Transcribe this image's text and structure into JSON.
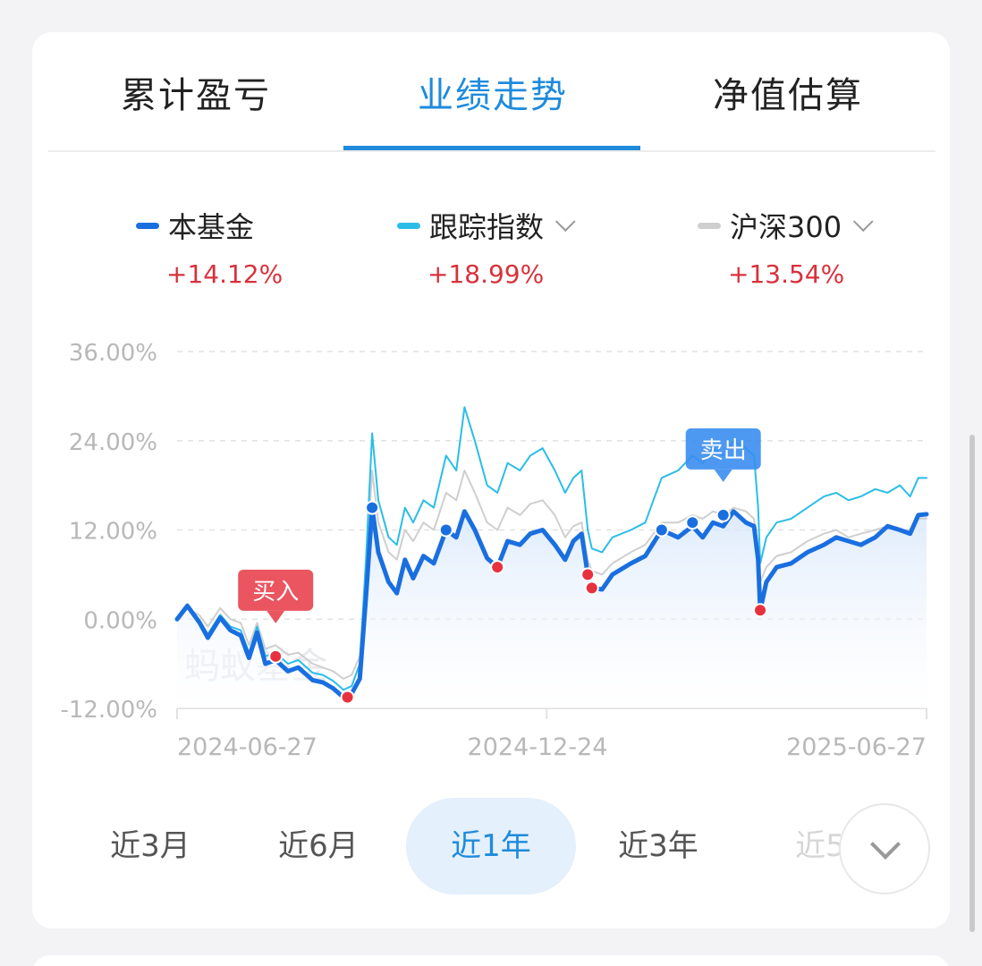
{
  "tabs": [
    {
      "label": "累计盈亏",
      "active": false
    },
    {
      "label": "业绩走势",
      "active": true
    },
    {
      "label": "净值估算",
      "active": false
    }
  ],
  "legend": [
    {
      "label": "本基金",
      "value": "+14.12%",
      "color": "#1a6fe0",
      "dropdown": false
    },
    {
      "label": "跟踪指数",
      "value": "+18.99%",
      "color": "#2bbde8",
      "dropdown": true
    },
    {
      "label": "沪深300",
      "value": "+13.54%",
      "color": "#cfcfcf",
      "dropdown": true
    }
  ],
  "chart_data": {
    "type": "line",
    "ylim": [
      -12,
      36
    ],
    "y_ticks": [
      "36.00%",
      "24.00%",
      "12.00%",
      "0.00%",
      "-12.00%"
    ],
    "y_tick_values": [
      36,
      24,
      12,
      0,
      -12
    ],
    "x_tick_labels": [
      "2024-06-27",
      "2024-12-24",
      "2025-06-27"
    ],
    "x_domain": [
      "2024-06-27",
      "2025-06-27"
    ],
    "watermark": "蚂蚁基金",
    "series": [
      {
        "name": "本基金",
        "color": "#1a6fe0",
        "points": [
          [
            "2024-06-27",
            0
          ],
          [
            "2024-07-02",
            1.8
          ],
          [
            "2024-07-08",
            -0.5
          ],
          [
            "2024-07-12",
            -2.5
          ],
          [
            "2024-07-18",
            0.2
          ],
          [
            "2024-07-23",
            -1.5
          ],
          [
            "2024-07-28",
            -2.2
          ],
          [
            "2024-08-01",
            -5.2
          ],
          [
            "2024-08-05",
            -1.8
          ],
          [
            "2024-08-09",
            -6
          ],
          [
            "2024-08-14",
            -5.5
          ],
          [
            "2024-08-20",
            -7
          ],
          [
            "2024-08-25",
            -6.5
          ],
          [
            "2024-09-01",
            -8.2
          ],
          [
            "2024-09-06",
            -8.5
          ],
          [
            "2024-09-11",
            -9.3
          ],
          [
            "2024-09-16",
            -10.5
          ],
          [
            "2024-09-20",
            -10
          ],
          [
            "2024-09-24",
            -8
          ],
          [
            "2024-09-27",
            3
          ],
          [
            "2024-09-30",
            15
          ],
          [
            "2024-10-03",
            9
          ],
          [
            "2024-10-08",
            5
          ],
          [
            "2024-10-12",
            3.5
          ],
          [
            "2024-10-16",
            8
          ],
          [
            "2024-10-20",
            5.5
          ],
          [
            "2024-10-25",
            8.5
          ],
          [
            "2024-10-30",
            7.5
          ],
          [
            "2024-11-05",
            12
          ],
          [
            "2024-11-10",
            11
          ],
          [
            "2024-11-14",
            14.5
          ],
          [
            "2024-11-19",
            12
          ],
          [
            "2024-11-25",
            8.2
          ],
          [
            "2024-11-30",
            7
          ],
          [
            "2024-12-05",
            10.5
          ],
          [
            "2024-12-11",
            10
          ],
          [
            "2024-12-16",
            11.5
          ],
          [
            "2024-12-22",
            12
          ],
          [
            "2024-12-28",
            10
          ],
          [
            "2025-01-02",
            8
          ],
          [
            "2025-01-06",
            10.5
          ],
          [
            "2025-01-10",
            11.5
          ],
          [
            "2025-01-13",
            6
          ],
          [
            "2025-01-15",
            4.2
          ],
          [
            "2025-01-20",
            4
          ],
          [
            "2025-01-25",
            6
          ],
          [
            "2025-02-03",
            7.5
          ],
          [
            "2025-02-10",
            8.5
          ],
          [
            "2025-02-18",
            12
          ],
          [
            "2025-02-26",
            11
          ],
          [
            "2025-03-05",
            12.5
          ],
          [
            "2025-03-10",
            11
          ],
          [
            "2025-03-15",
            13
          ],
          [
            "2025-03-20",
            12.5
          ],
          [
            "2025-03-25",
            14.5
          ],
          [
            "2025-03-31",
            13
          ],
          [
            "2025-04-04",
            12.5
          ],
          [
            "2025-04-06",
            8
          ],
          [
            "2025-04-07",
            1.2
          ],
          [
            "2025-04-10",
            5
          ],
          [
            "2025-04-15",
            7
          ],
          [
            "2025-04-22",
            7.5
          ],
          [
            "2025-04-30",
            9
          ],
          [
            "2025-05-08",
            10
          ],
          [
            "2025-05-14",
            11
          ],
          [
            "2025-05-20",
            10.5
          ],
          [
            "2025-05-26",
            10
          ],
          [
            "2025-06-02",
            11
          ],
          [
            "2025-06-08",
            12.5
          ],
          [
            "2025-06-14",
            12
          ],
          [
            "2025-06-19",
            11.5
          ],
          [
            "2025-06-23",
            14
          ],
          [
            "2025-06-27",
            14.12
          ]
        ]
      },
      {
        "name": "跟踪指数",
        "color": "#2bbde8",
        "points": [
          [
            "2024-06-27",
            0
          ],
          [
            "2024-07-02",
            2
          ],
          [
            "2024-07-08",
            -0.2
          ],
          [
            "2024-07-12",
            -2
          ],
          [
            "2024-07-18",
            0.6
          ],
          [
            "2024-07-23",
            -1
          ],
          [
            "2024-07-28",
            -1.5
          ],
          [
            "2024-08-01",
            -4.5
          ],
          [
            "2024-08-05",
            -1
          ],
          [
            "2024-08-09",
            -5
          ],
          [
            "2024-08-14",
            -4.5
          ],
          [
            "2024-08-20",
            -6
          ],
          [
            "2024-08-25",
            -5.5
          ],
          [
            "2024-09-01",
            -7.2
          ],
          [
            "2024-09-06",
            -7.5
          ],
          [
            "2024-09-11",
            -8.3
          ],
          [
            "2024-09-16",
            -9.5
          ],
          [
            "2024-09-20",
            -9
          ],
          [
            "2024-09-24",
            -6
          ],
          [
            "2024-09-27",
            8
          ],
          [
            "2024-09-30",
            25
          ],
          [
            "2024-10-03",
            16
          ],
          [
            "2024-10-08",
            11
          ],
          [
            "2024-10-12",
            10
          ],
          [
            "2024-10-16",
            15
          ],
          [
            "2024-10-20",
            13
          ],
          [
            "2024-10-25",
            16
          ],
          [
            "2024-10-30",
            15
          ],
          [
            "2024-11-05",
            22
          ],
          [
            "2024-11-10",
            20
          ],
          [
            "2024-11-14",
            28.5
          ],
          [
            "2024-11-19",
            24
          ],
          [
            "2024-11-25",
            18
          ],
          [
            "2024-11-30",
            17
          ],
          [
            "2024-12-05",
            21
          ],
          [
            "2024-12-11",
            20
          ],
          [
            "2024-12-16",
            22
          ],
          [
            "2024-12-22",
            23
          ],
          [
            "2024-12-28",
            20
          ],
          [
            "2025-01-02",
            17
          ],
          [
            "2025-01-06",
            19
          ],
          [
            "2025-01-10",
            20
          ],
          [
            "2025-01-13",
            12
          ],
          [
            "2025-01-15",
            9.5
          ],
          [
            "2025-01-20",
            9
          ],
          [
            "2025-01-25",
            11
          ],
          [
            "2025-02-03",
            12
          ],
          [
            "2025-02-10",
            13
          ],
          [
            "2025-02-18",
            19
          ],
          [
            "2025-02-26",
            20
          ],
          [
            "2025-03-05",
            22
          ],
          [
            "2025-03-10",
            21
          ],
          [
            "2025-03-15",
            23
          ],
          [
            "2025-03-20",
            22
          ],
          [
            "2025-03-25",
            24
          ],
          [
            "2025-03-31",
            23
          ],
          [
            "2025-04-04",
            22
          ],
          [
            "2025-04-06",
            15
          ],
          [
            "2025-04-07",
            7.5
          ],
          [
            "2025-04-10",
            11
          ],
          [
            "2025-04-15",
            13
          ],
          [
            "2025-04-22",
            13.5
          ],
          [
            "2025-04-30",
            15
          ],
          [
            "2025-05-08",
            16.5
          ],
          [
            "2025-05-14",
            17
          ],
          [
            "2025-05-20",
            16
          ],
          [
            "2025-05-26",
            16.5
          ],
          [
            "2025-06-02",
            17.5
          ],
          [
            "2025-06-08",
            17
          ],
          [
            "2025-06-14",
            18
          ],
          [
            "2025-06-19",
            16.5
          ],
          [
            "2025-06-23",
            19
          ],
          [
            "2025-06-27",
            18.99
          ]
        ]
      },
      {
        "name": "沪深300",
        "color": "#cfcfcf",
        "points": [
          [
            "2024-06-27",
            0
          ],
          [
            "2024-07-02",
            1.5
          ],
          [
            "2024-07-08",
            0.5
          ],
          [
            "2024-07-12",
            -1
          ],
          [
            "2024-07-18",
            1.5
          ],
          [
            "2024-07-23",
            0
          ],
          [
            "2024-07-28",
            -0.5
          ],
          [
            "2024-08-01",
            -3.5
          ],
          [
            "2024-08-05",
            -0.5
          ],
          [
            "2024-08-09",
            -4
          ],
          [
            "2024-08-14",
            -3.5
          ],
          [
            "2024-08-20",
            -4.8
          ],
          [
            "2024-08-25",
            -4.5
          ],
          [
            "2024-09-01",
            -6
          ],
          [
            "2024-09-06",
            -6.5
          ],
          [
            "2024-09-11",
            -7
          ],
          [
            "2024-09-16",
            -8
          ],
          [
            "2024-09-20",
            -7.5
          ],
          [
            "2024-09-24",
            -5
          ],
          [
            "2024-09-27",
            6
          ],
          [
            "2024-09-30",
            20
          ],
          [
            "2024-10-03",
            13
          ],
          [
            "2024-10-08",
            9
          ],
          [
            "2024-10-12",
            8
          ],
          [
            "2024-10-16",
            12
          ],
          [
            "2024-10-20",
            10.5
          ],
          [
            "2024-10-25",
            13
          ],
          [
            "2024-10-30",
            12
          ],
          [
            "2024-11-05",
            17
          ],
          [
            "2024-11-10",
            16
          ],
          [
            "2024-11-14",
            20
          ],
          [
            "2024-11-19",
            17
          ],
          [
            "2024-11-25",
            13
          ],
          [
            "2024-11-30",
            12
          ],
          [
            "2024-12-05",
            15
          ],
          [
            "2024-12-11",
            14
          ],
          [
            "2024-12-16",
            15.5
          ],
          [
            "2024-12-22",
            16
          ],
          [
            "2024-12-28",
            14
          ],
          [
            "2025-01-02",
            11
          ],
          [
            "2025-01-06",
            12.5
          ],
          [
            "2025-01-10",
            13
          ],
          [
            "2025-01-13",
            8
          ],
          [
            "2025-01-15",
            6.5
          ],
          [
            "2025-01-20",
            6
          ],
          [
            "2025-01-25",
            7.5
          ],
          [
            "2025-02-03",
            9
          ],
          [
            "2025-02-10",
            10
          ],
          [
            "2025-02-18",
            13
          ],
          [
            "2025-02-26",
            13
          ],
          [
            "2025-03-05",
            14
          ],
          [
            "2025-03-10",
            13.5
          ],
          [
            "2025-03-15",
            14.5
          ],
          [
            "2025-03-20",
            14
          ],
          [
            "2025-03-25",
            15
          ],
          [
            "2025-03-31",
            14.5
          ],
          [
            "2025-04-04",
            13.5
          ],
          [
            "2025-04-06",
            9
          ],
          [
            "2025-04-07",
            5
          ],
          [
            "2025-04-10",
            7
          ],
          [
            "2025-04-15",
            8.5
          ],
          [
            "2025-04-22",
            9
          ],
          [
            "2025-04-30",
            10.5
          ],
          [
            "2025-05-08",
            11.5
          ],
          [
            "2025-05-14",
            12
          ],
          [
            "2025-05-20",
            11
          ],
          [
            "2025-05-26",
            11.5
          ],
          [
            "2025-06-02",
            12
          ],
          [
            "2025-06-08",
            12.5
          ],
          [
            "2025-06-14",
            12
          ],
          [
            "2025-06-19",
            12
          ],
          [
            "2025-06-23",
            13.5
          ],
          [
            "2025-06-27",
            13.54
          ]
        ]
      }
    ],
    "annotations": [
      {
        "text": "买入",
        "x": "2024-08-14",
        "y": -5,
        "color": "#e8434f"
      },
      {
        "text": "卖出",
        "x": "2025-03-20",
        "y": 14,
        "color": "#3a8df0"
      }
    ],
    "markers": [
      {
        "x": "2024-08-14",
        "y": -5,
        "kind": "buy"
      },
      {
        "x": "2024-09-18",
        "y": -10.5,
        "kind": "buy"
      },
      {
        "x": "2024-09-30",
        "y": 15,
        "kind": "sell"
      },
      {
        "x": "2024-11-05",
        "y": 12,
        "kind": "sell"
      },
      {
        "x": "2024-11-30",
        "y": 7,
        "kind": "buy"
      },
      {
        "x": "2025-01-13",
        "y": 6,
        "kind": "buy"
      },
      {
        "x": "2025-01-15",
        "y": 4.2,
        "kind": "buy"
      },
      {
        "x": "2025-02-18",
        "y": 12,
        "kind": "sell"
      },
      {
        "x": "2025-03-05",
        "y": 13,
        "kind": "sell"
      },
      {
        "x": "2025-03-20",
        "y": 14,
        "kind": "sell"
      },
      {
        "x": "2025-04-07",
        "y": 1.2,
        "kind": "buy"
      }
    ]
  },
  "ranges": [
    {
      "label": "近3月",
      "active": false
    },
    {
      "label": "近6月",
      "active": false
    },
    {
      "label": "近1年",
      "active": true
    },
    {
      "label": "近3年",
      "active": false
    },
    {
      "label": "近5年",
      "active": false
    }
  ]
}
